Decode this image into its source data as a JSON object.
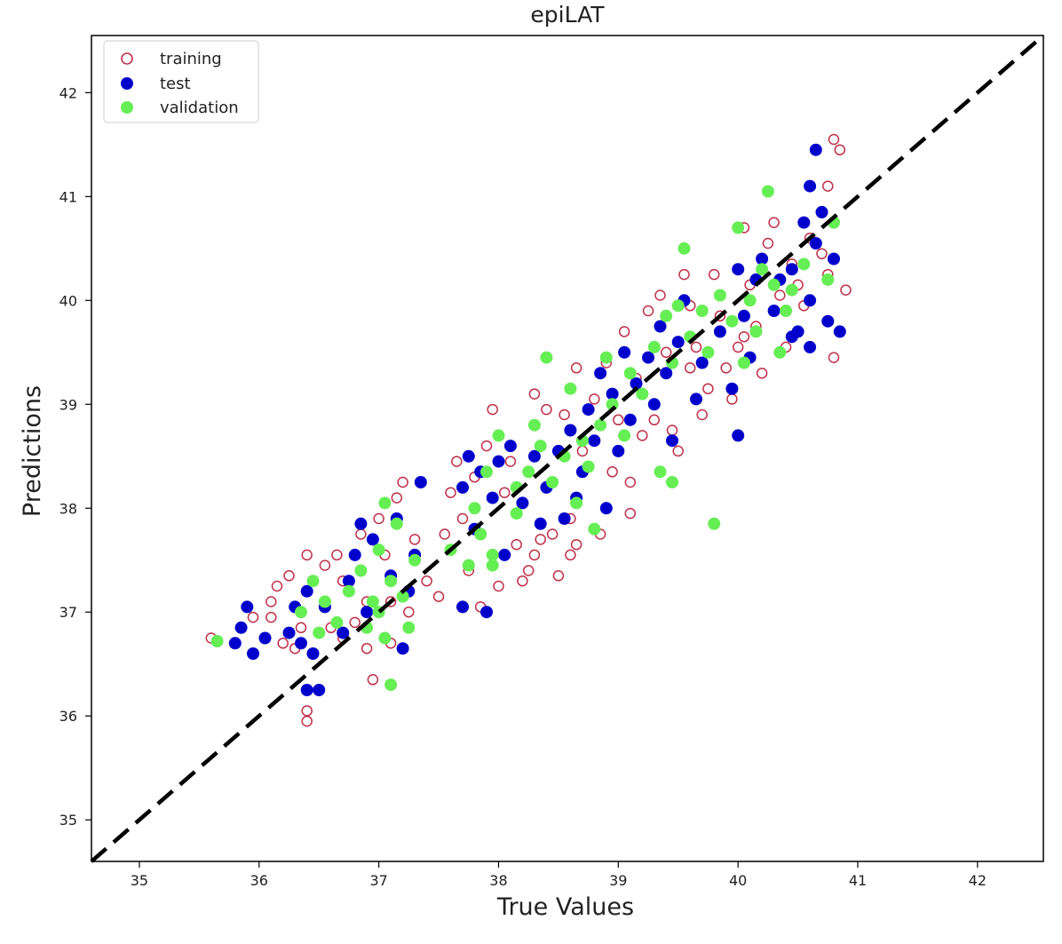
{
  "chart_data": {
    "type": "scatter",
    "title": "epiLAT",
    "xlabel": "True Values",
    "ylabel": "Predictions",
    "xlim": [
      34.6,
      42.55
    ],
    "ylim": [
      34.6,
      42.55
    ],
    "xticks": [
      35,
      36,
      37,
      38,
      39,
      40,
      41,
      42
    ],
    "yticks": [
      35,
      36,
      37,
      38,
      39,
      40,
      41,
      42
    ],
    "grid": false,
    "legend_position": "top-left",
    "reference_line": {
      "style": "dashed",
      "color": "#000000",
      "from": [
        34.6,
        34.6
      ],
      "to": [
        42.55,
        42.55
      ]
    },
    "series": [
      {
        "name": "training",
        "marker": "open-circle",
        "color": "#c0304a",
        "points": [
          [
            35.6,
            36.75
          ],
          [
            35.95,
            36.95
          ],
          [
            36.05,
            36.75
          ],
          [
            36.1,
            37.1
          ],
          [
            36.1,
            36.95
          ],
          [
            36.15,
            37.25
          ],
          [
            36.2,
            36.7
          ],
          [
            36.25,
            37.35
          ],
          [
            36.3,
            36.65
          ],
          [
            36.35,
            36.85
          ],
          [
            36.4,
            37.55
          ],
          [
            36.4,
            36.05
          ],
          [
            36.4,
            35.95
          ],
          [
            36.45,
            37.3
          ],
          [
            36.55,
            37.45
          ],
          [
            36.55,
            37.1
          ],
          [
            36.6,
            36.85
          ],
          [
            36.65,
            37.55
          ],
          [
            36.7,
            37.3
          ],
          [
            36.7,
            36.75
          ],
          [
            36.8,
            36.9
          ],
          [
            36.85,
            37.75
          ],
          [
            36.9,
            37.1
          ],
          [
            36.9,
            36.65
          ],
          [
            36.95,
            36.35
          ],
          [
            37.0,
            37.9
          ],
          [
            37.05,
            37.55
          ],
          [
            37.1,
            37.1
          ],
          [
            37.1,
            36.7
          ],
          [
            37.15,
            38.1
          ],
          [
            37.2,
            38.25
          ],
          [
            37.3,
            37.7
          ],
          [
            37.4,
            37.3
          ],
          [
            37.5,
            37.15
          ],
          [
            37.55,
            37.75
          ],
          [
            37.6,
            38.15
          ],
          [
            37.7,
            37.9
          ],
          [
            37.75,
            37.4
          ],
          [
            37.8,
            38.3
          ],
          [
            37.85,
            37.05
          ],
          [
            37.9,
            38.6
          ],
          [
            37.95,
            38.95
          ],
          [
            38.0,
            37.25
          ],
          [
            38.05,
            38.15
          ],
          [
            38.1,
            38.45
          ],
          [
            38.15,
            37.65
          ],
          [
            38.2,
            37.3
          ],
          [
            38.25,
            37.4
          ],
          [
            38.3,
            37.55
          ],
          [
            38.35,
            37.7
          ],
          [
            38.4,
            38.95
          ],
          [
            38.45,
            37.75
          ],
          [
            38.5,
            37.35
          ],
          [
            38.55,
            38.9
          ],
          [
            38.6,
            37.55
          ],
          [
            38.65,
            37.65
          ],
          [
            38.65,
            39.35
          ],
          [
            38.7,
            38.55
          ],
          [
            38.75,
            38.95
          ],
          [
            38.8,
            39.05
          ],
          [
            38.85,
            37.75
          ],
          [
            38.9,
            39.4
          ],
          [
            38.95,
            38.35
          ],
          [
            39.0,
            38.85
          ],
          [
            39.05,
            39.7
          ],
          [
            39.1,
            37.95
          ],
          [
            39.1,
            38.25
          ],
          [
            39.15,
            39.25
          ],
          [
            39.2,
            38.7
          ],
          [
            39.25,
            39.9
          ],
          [
            39.3,
            38.85
          ],
          [
            39.35,
            40.05
          ],
          [
            39.4,
            39.5
          ],
          [
            39.45,
            38.75
          ],
          [
            39.5,
            38.55
          ],
          [
            39.55,
            40.25
          ],
          [
            39.6,
            39.95
          ],
          [
            39.65,
            39.55
          ],
          [
            39.7,
            38.9
          ],
          [
            39.75,
            39.15
          ],
          [
            39.8,
            40.25
          ],
          [
            39.85,
            39.85
          ],
          [
            39.9,
            39.35
          ],
          [
            39.95,
            39.05
          ],
          [
            40.0,
            39.55
          ],
          [
            40.05,
            40.7
          ],
          [
            40.1,
            40.15
          ],
          [
            40.15,
            39.75
          ],
          [
            40.2,
            39.3
          ],
          [
            40.25,
            40.55
          ],
          [
            40.3,
            40.75
          ],
          [
            40.35,
            40.05
          ],
          [
            40.4,
            39.55
          ],
          [
            40.45,
            40.35
          ],
          [
            40.5,
            40.15
          ],
          [
            40.55,
            39.95
          ],
          [
            40.6,
            40.6
          ],
          [
            40.7,
            40.45
          ],
          [
            40.75,
            41.1
          ],
          [
            40.8,
            41.55
          ],
          [
            40.85,
            41.45
          ],
          [
            40.8,
            39.45
          ],
          [
            40.75,
            40.25
          ],
          [
            40.9,
            40.1
          ],
          [
            38.6,
            37.9
          ],
          [
            37.65,
            38.45
          ],
          [
            38.3,
            39.1
          ],
          [
            39.6,
            39.35
          ],
          [
            40.05,
            39.65
          ],
          [
            37.25,
            37.0
          ]
        ]
      },
      {
        "name": "test",
        "marker": "filled-circle",
        "color": "#0000cc",
        "points": [
          [
            35.8,
            36.7
          ],
          [
            35.85,
            36.85
          ],
          [
            35.9,
            37.05
          ],
          [
            35.95,
            36.6
          ],
          [
            36.05,
            36.75
          ],
          [
            36.25,
            36.8
          ],
          [
            36.3,
            37.05
          ],
          [
            36.35,
            36.7
          ],
          [
            36.4,
            37.2
          ],
          [
            36.4,
            36.25
          ],
          [
            36.45,
            36.6
          ],
          [
            36.5,
            36.25
          ],
          [
            36.55,
            37.05
          ],
          [
            36.7,
            36.8
          ],
          [
            36.75,
            37.3
          ],
          [
            36.8,
            37.55
          ],
          [
            36.85,
            37.85
          ],
          [
            36.9,
            37.0
          ],
          [
            36.95,
            37.7
          ],
          [
            37.1,
            37.35
          ],
          [
            37.15,
            37.9
          ],
          [
            37.2,
            36.65
          ],
          [
            37.25,
            37.2
          ],
          [
            37.3,
            37.55
          ],
          [
            37.35,
            38.25
          ],
          [
            37.7,
            38.2
          ],
          [
            37.7,
            37.05
          ],
          [
            37.75,
            38.5
          ],
          [
            37.8,
            37.8
          ],
          [
            37.85,
            38.35
          ],
          [
            37.9,
            37.0
          ],
          [
            37.95,
            38.1
          ],
          [
            38.0,
            38.45
          ],
          [
            38.05,
            37.55
          ],
          [
            38.1,
            38.6
          ],
          [
            38.2,
            38.05
          ],
          [
            38.3,
            38.5
          ],
          [
            38.35,
            37.85
          ],
          [
            38.4,
            38.2
          ],
          [
            38.5,
            38.55
          ],
          [
            38.55,
            37.9
          ],
          [
            38.6,
            38.75
          ],
          [
            38.65,
            38.1
          ],
          [
            38.7,
            38.35
          ],
          [
            38.75,
            38.95
          ],
          [
            38.8,
            38.65
          ],
          [
            38.85,
            39.3
          ],
          [
            38.9,
            38.0
          ],
          [
            38.95,
            39.1
          ],
          [
            39.0,
            38.55
          ],
          [
            39.05,
            39.5
          ],
          [
            39.1,
            38.85
          ],
          [
            39.15,
            39.2
          ],
          [
            39.25,
            39.45
          ],
          [
            39.3,
            39.0
          ],
          [
            39.35,
            39.75
          ],
          [
            39.4,
            39.3
          ],
          [
            39.45,
            38.65
          ],
          [
            39.5,
            39.6
          ],
          [
            39.55,
            40.0
          ],
          [
            39.7,
            39.4
          ],
          [
            39.85,
            39.7
          ],
          [
            39.95,
            39.15
          ],
          [
            40.0,
            38.7
          ],
          [
            40.0,
            40.3
          ],
          [
            40.05,
            39.85
          ],
          [
            40.1,
            39.45
          ],
          [
            40.15,
            40.2
          ],
          [
            40.2,
            40.4
          ],
          [
            40.3,
            39.9
          ],
          [
            40.35,
            40.2
          ],
          [
            40.45,
            39.65
          ],
          [
            40.5,
            39.7
          ],
          [
            40.55,
            40.75
          ],
          [
            40.6,
            40.0
          ],
          [
            40.65,
            41.45
          ],
          [
            40.6,
            41.1
          ],
          [
            40.7,
            40.85
          ],
          [
            40.75,
            39.8
          ],
          [
            40.8,
            40.4
          ],
          [
            40.85,
            39.7
          ],
          [
            40.6,
            39.55
          ],
          [
            40.45,
            40.3
          ],
          [
            40.65,
            40.55
          ],
          [
            39.65,
            39.05
          ]
        ]
      },
      {
        "name": "validation",
        "marker": "filled-circle",
        "color": "#66ee55",
        "points": [
          [
            35.65,
            36.72
          ],
          [
            36.35,
            37.0
          ],
          [
            36.45,
            37.3
          ],
          [
            36.5,
            36.8
          ],
          [
            36.55,
            37.1
          ],
          [
            36.65,
            36.9
          ],
          [
            36.75,
            37.2
          ],
          [
            36.85,
            37.4
          ],
          [
            36.9,
            36.85
          ],
          [
            36.95,
            37.1
          ],
          [
            37.0,
            37.6
          ],
          [
            37.05,
            36.75
          ],
          [
            37.1,
            37.3
          ],
          [
            37.15,
            37.85
          ],
          [
            37.2,
            37.15
          ],
          [
            37.25,
            36.85
          ],
          [
            37.05,
            38.05
          ],
          [
            37.1,
            36.3
          ],
          [
            37.3,
            37.5
          ],
          [
            37.0,
            37.0
          ],
          [
            37.6,
            37.6
          ],
          [
            37.75,
            37.45
          ],
          [
            37.8,
            38.0
          ],
          [
            37.85,
            37.75
          ],
          [
            37.9,
            38.35
          ],
          [
            37.95,
            37.45
          ],
          [
            38.0,
            38.7
          ],
          [
            38.15,
            38.2
          ],
          [
            38.25,
            38.35
          ],
          [
            38.3,
            38.8
          ],
          [
            38.35,
            38.6
          ],
          [
            38.45,
            38.25
          ],
          [
            38.55,
            38.5
          ],
          [
            38.6,
            39.15
          ],
          [
            38.65,
            38.05
          ],
          [
            38.7,
            38.65
          ],
          [
            38.75,
            38.4
          ],
          [
            38.8,
            37.8
          ],
          [
            38.85,
            38.8
          ],
          [
            38.9,
            39.45
          ],
          [
            38.95,
            39.0
          ],
          [
            39.05,
            38.7
          ],
          [
            39.1,
            39.3
          ],
          [
            39.2,
            39.1
          ],
          [
            39.3,
            39.55
          ],
          [
            39.35,
            38.35
          ],
          [
            39.4,
            39.85
          ],
          [
            39.45,
            39.4
          ],
          [
            39.5,
            39.95
          ],
          [
            39.55,
            40.5
          ],
          [
            39.6,
            39.65
          ],
          [
            39.7,
            39.9
          ],
          [
            39.75,
            39.5
          ],
          [
            39.85,
            40.05
          ],
          [
            39.95,
            39.8
          ],
          [
            40.0,
            40.7
          ],
          [
            40.05,
            39.4
          ],
          [
            40.1,
            40.0
          ],
          [
            40.15,
            39.7
          ],
          [
            40.2,
            40.3
          ],
          [
            40.25,
            41.05
          ],
          [
            40.3,
            40.15
          ],
          [
            40.35,
            39.5
          ],
          [
            40.4,
            39.9
          ],
          [
            40.45,
            40.1
          ],
          [
            40.55,
            40.35
          ],
          [
            40.75,
            40.2
          ],
          [
            40.8,
            40.75
          ],
          [
            39.8,
            37.85
          ],
          [
            39.45,
            38.25
          ],
          [
            38.4,
            39.45
          ],
          [
            37.95,
            37.55
          ],
          [
            38.15,
            37.95
          ]
        ]
      }
    ]
  }
}
